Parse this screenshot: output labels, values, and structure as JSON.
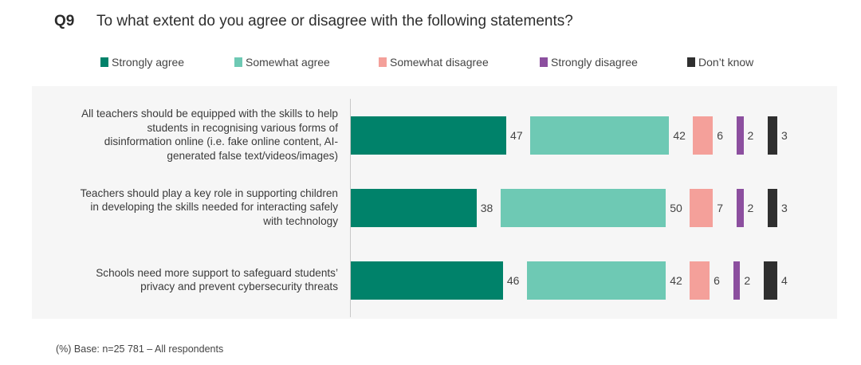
{
  "question": {
    "number": "Q9",
    "text": "To what extent do you agree or disagree with the following statements?"
  },
  "colors": {
    "strongly_agree": "#00826a",
    "somewhat_agree": "#6ec9b4",
    "somewhat_disagree": "#f4a09a",
    "strongly_disagree": "#8c4f9f",
    "dont_know": "#2f2f2f"
  },
  "legend": [
    {
      "label": "Strongly agree",
      "color": "#00826a"
    },
    {
      "label": "Somewhat agree",
      "color": "#6ec9b4"
    },
    {
      "label": "Somewhat disagree",
      "color": "#f4a09a"
    },
    {
      "label": "Strongly disagree",
      "color": "#8c4f9f"
    },
    {
      "label": "Don’t know",
      "color": "#2f2f2f"
    }
  ],
  "footnote": "(%) Base: n=25 781 – All respondents",
  "chart_data": {
    "type": "bar",
    "orientation": "horizontal",
    "stacked": false,
    "title": "To what extent do you agree or disagree with the following statements?",
    "unit": "%",
    "categories": [
      "All teachers should be equipped with the skills to help students in recognising various forms of disinformation online (i.e. fake online content, AI-generated false text/videos/images)",
      "Teachers should play a key role in supporting children in developing the skills needed for interacting safely with technology",
      "Schools need more support to safeguard students’ privacy and prevent cybersecurity threats"
    ],
    "category_lines": [
      [
        "All teachers should be equipped with the skills to help",
        "students in recognising various forms of",
        "disinformation online (i.e. fake online content, AI-",
        "generated false text/videos/images)"
      ],
      [
        "Teachers should play a key role in supporting children",
        "in developing the skills needed for interacting safely",
        "with technology"
      ],
      [
        "Schools need more support to safeguard students’",
        "privacy and prevent cybersecurity threats"
      ]
    ],
    "series": [
      {
        "name": "Strongly agree",
        "values": [
          47,
          38,
          46
        ]
      },
      {
        "name": "Somewhat agree",
        "values": [
          42,
          50,
          42
        ]
      },
      {
        "name": "Somewhat disagree",
        "values": [
          6,
          7,
          6
        ]
      },
      {
        "name": "Strongly disagree",
        "values": [
          2,
          2,
          2
        ]
      },
      {
        "name": "Don’t know",
        "values": [
          3,
          3,
          4
        ]
      }
    ],
    "legend_position": "top",
    "grid": false
  }
}
